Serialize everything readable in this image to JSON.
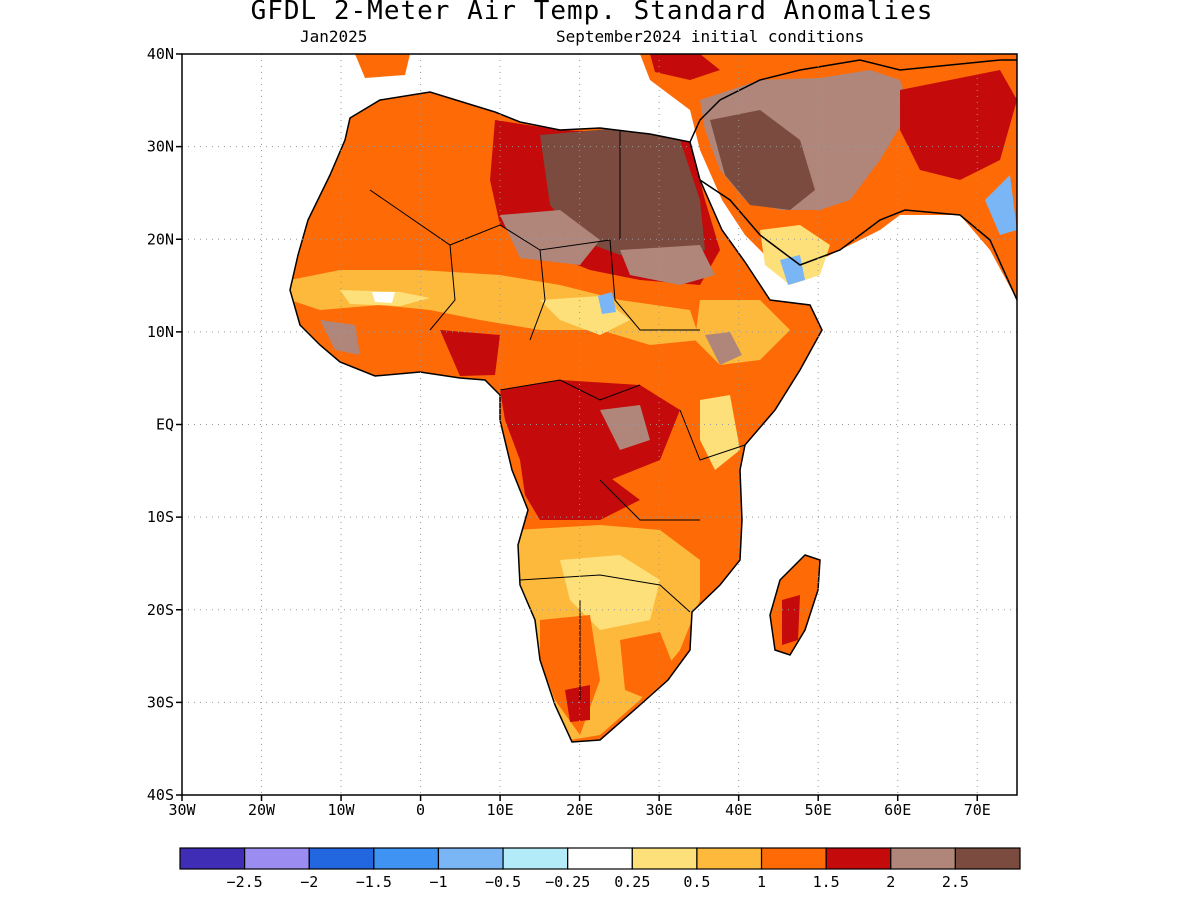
{
  "header": {
    "title": "GFDL 2-Meter Air Temp. Standard Anomalies",
    "left_subtitle": "Jan2025",
    "right_subtitle": "September2024 initial conditions"
  },
  "map": {
    "lon_range": [
      -30,
      75
    ],
    "lat_range": [
      -40,
      40
    ],
    "lat_ticks": [
      {
        "value": 40,
        "label": "40N"
      },
      {
        "value": 30,
        "label": "30N"
      },
      {
        "value": 20,
        "label": "20N"
      },
      {
        "value": 10,
        "label": "10N"
      },
      {
        "value": 0,
        "label": "EQ"
      },
      {
        "value": -10,
        "label": "10S"
      },
      {
        "value": -20,
        "label": "20S"
      },
      {
        "value": -30,
        "label": "30S"
      },
      {
        "value": -40,
        "label": "40S"
      }
    ],
    "lon_ticks": [
      {
        "value": -30,
        "label": "30W"
      },
      {
        "value": -20,
        "label": "20W"
      },
      {
        "value": -10,
        "label": "10W"
      },
      {
        "value": 0,
        "label": "0"
      },
      {
        "value": 10,
        "label": "10E"
      },
      {
        "value": 20,
        "label": "20E"
      },
      {
        "value": 30,
        "label": "30E"
      },
      {
        "value": 40,
        "label": "40E"
      },
      {
        "value": 50,
        "label": "50E"
      },
      {
        "value": 60,
        "label": "60E"
      },
      {
        "value": 70,
        "label": "70E"
      }
    ],
    "grid": "dotted"
  },
  "legend": {
    "colors": [
      "#3f2db5",
      "#9b8cf2",
      "#2266e0",
      "#3f93f2",
      "#7ab5f5",
      "#b3ecf8",
      "#ffffff",
      "#fde07a",
      "#fdb93c",
      "#fd6a06",
      "#c40a0a",
      "#b0867a",
      "#7a4b3e"
    ],
    "labels": [
      "-2.5",
      "-2",
      "-1.5",
      "-1",
      "-0.5",
      "-0.25",
      "0.25",
      "0.5",
      "1",
      "1.5",
      "2",
      "2.5"
    ]
  },
  "colors": {
    "very_warm": "#7a4b3e",
    "warm_brown": "#b0867a",
    "dark_red": "#c40a0a",
    "orange": "#fd6a06",
    "light_orange": "#fdb93c",
    "yellow": "#fde07a",
    "cool_light": "#b3ecf8",
    "cool": "#7ab5f5"
  }
}
